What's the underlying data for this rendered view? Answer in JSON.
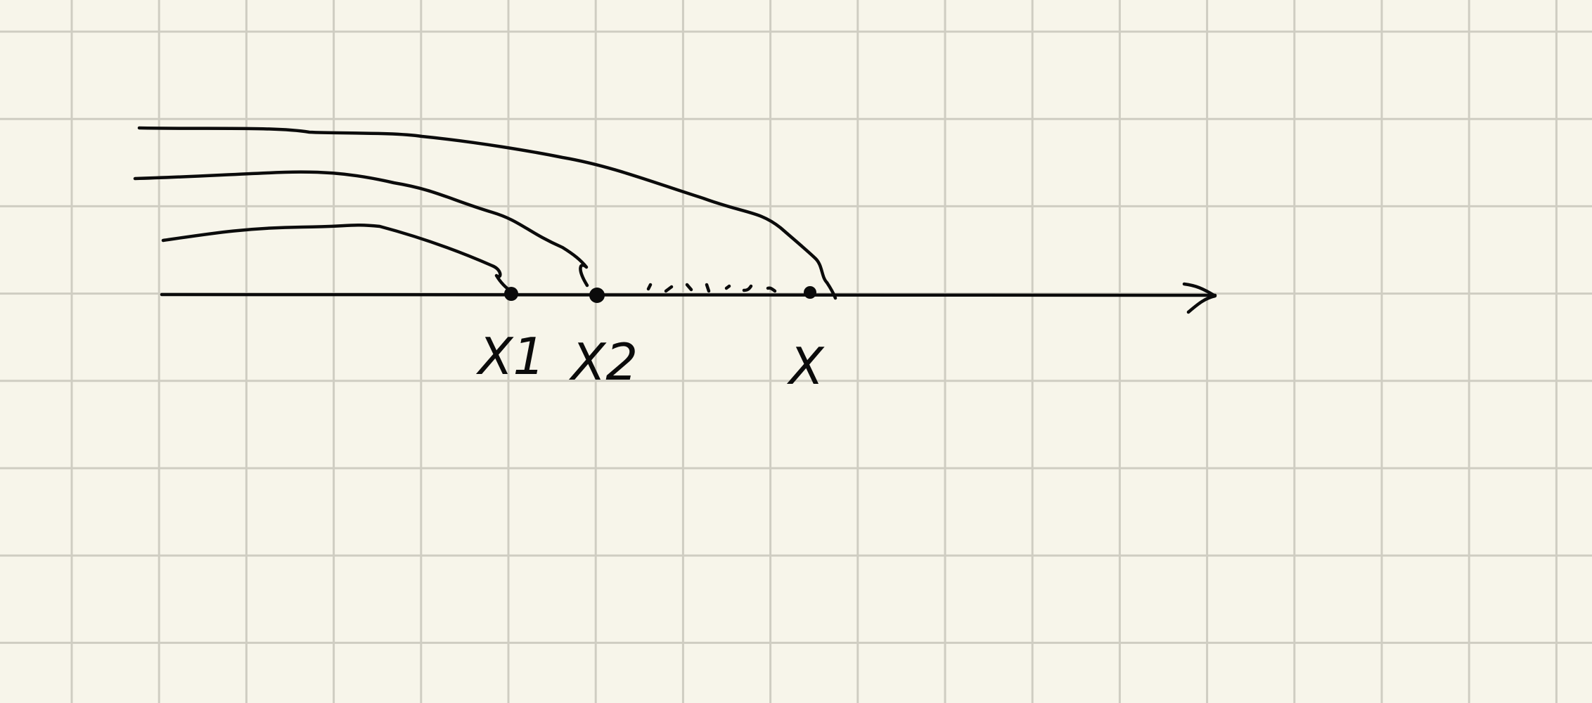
{
  "diagram": {
    "points": [
      {
        "id": "x1",
        "label": "X1"
      },
      {
        "id": "x2",
        "label": "X2"
      },
      {
        "id": "x",
        "label": "X"
      }
    ],
    "colors": {
      "paper": "#f7f5ea",
      "grid": "#cfcdc2",
      "ink": "#0b0b0b"
    }
  }
}
